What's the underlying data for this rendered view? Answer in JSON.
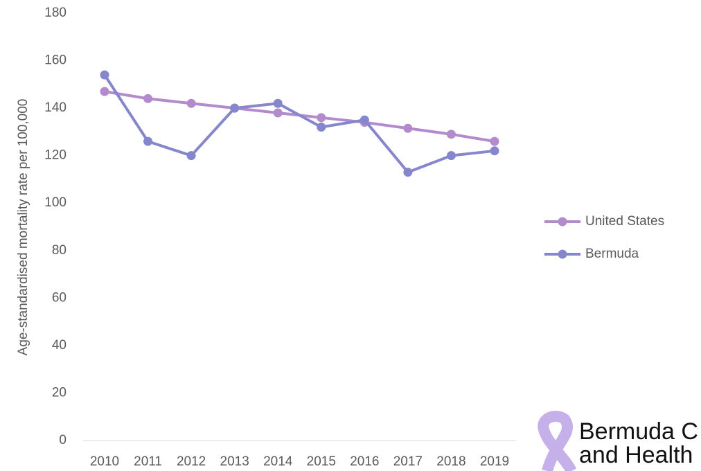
{
  "chart_data": {
    "type": "line",
    "ylabel": "Age-standardised mortality rate per 100,000",
    "x": [
      2010,
      2011,
      2012,
      2013,
      2014,
      2015,
      2016,
      2017,
      2018,
      2019
    ],
    "series": [
      {
        "name": "United States",
        "color": "#b38bcc",
        "values": [
          147,
          144,
          142,
          140,
          138,
          136,
          134,
          131.5,
          129,
          126
        ]
      },
      {
        "name": "Bermuda",
        "color": "#8686cc",
        "values": [
          154,
          126,
          120,
          140,
          142,
          132,
          135,
          113,
          120,
          122
        ]
      }
    ],
    "ylim": [
      0,
      180
    ],
    "yticks": [
      0,
      20,
      40,
      60,
      80,
      100,
      120,
      140,
      160,
      180
    ],
    "grid": false,
    "legend": "right"
  },
  "logo": {
    "line1": "Bermuda C",
    "line2": "and Health"
  }
}
